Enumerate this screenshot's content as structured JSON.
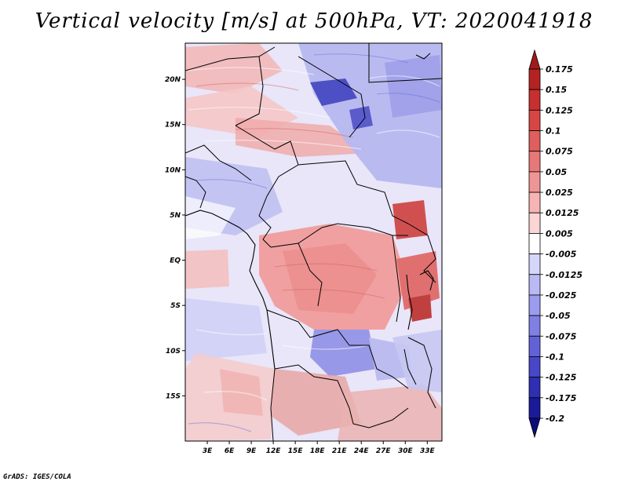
{
  "title": "Vertical velocity [m/s] at 500hPa, VT: 2020041918",
  "credit": "GrADS: IGES/COLA",
  "map": {
    "lon_range": [
      0,
      35
    ],
    "lat_range": [
      -20,
      24
    ],
    "lon_ticks": [
      "3E",
      "6E",
      "9E",
      "12E",
      "15E",
      "18E",
      "21E",
      "24E",
      "27E",
      "30E",
      "33E"
    ],
    "lat_ticks": [
      "20N",
      "15N",
      "10N",
      "5N",
      "EQ",
      "5S",
      "10S",
      "15S"
    ]
  },
  "colorbar": {
    "labels": [
      "0.175",
      "0.15",
      "0.125",
      "0.1",
      "0.075",
      "0.05",
      "0.025",
      "0.0125",
      "0.005",
      "-0.005",
      "-0.0125",
      "-0.025",
      "-0.05",
      "-0.075",
      "-0.1",
      "-0.125",
      "-0.175",
      "-0.2"
    ],
    "colors": [
      "#a11a1a",
      "#b52222",
      "#c83030",
      "#d84545",
      "#e05e5e",
      "#e87878",
      "#f09595",
      "#f7b4b4",
      "#fbd4d4",
      "#ffffff",
      "#d6d6fa",
      "#b9b9f4",
      "#9c9cee",
      "#8080e4",
      "#6262d8",
      "#4747c8",
      "#2f2fb4",
      "#1a1a9a",
      "#0b0b7a"
    ]
  }
}
